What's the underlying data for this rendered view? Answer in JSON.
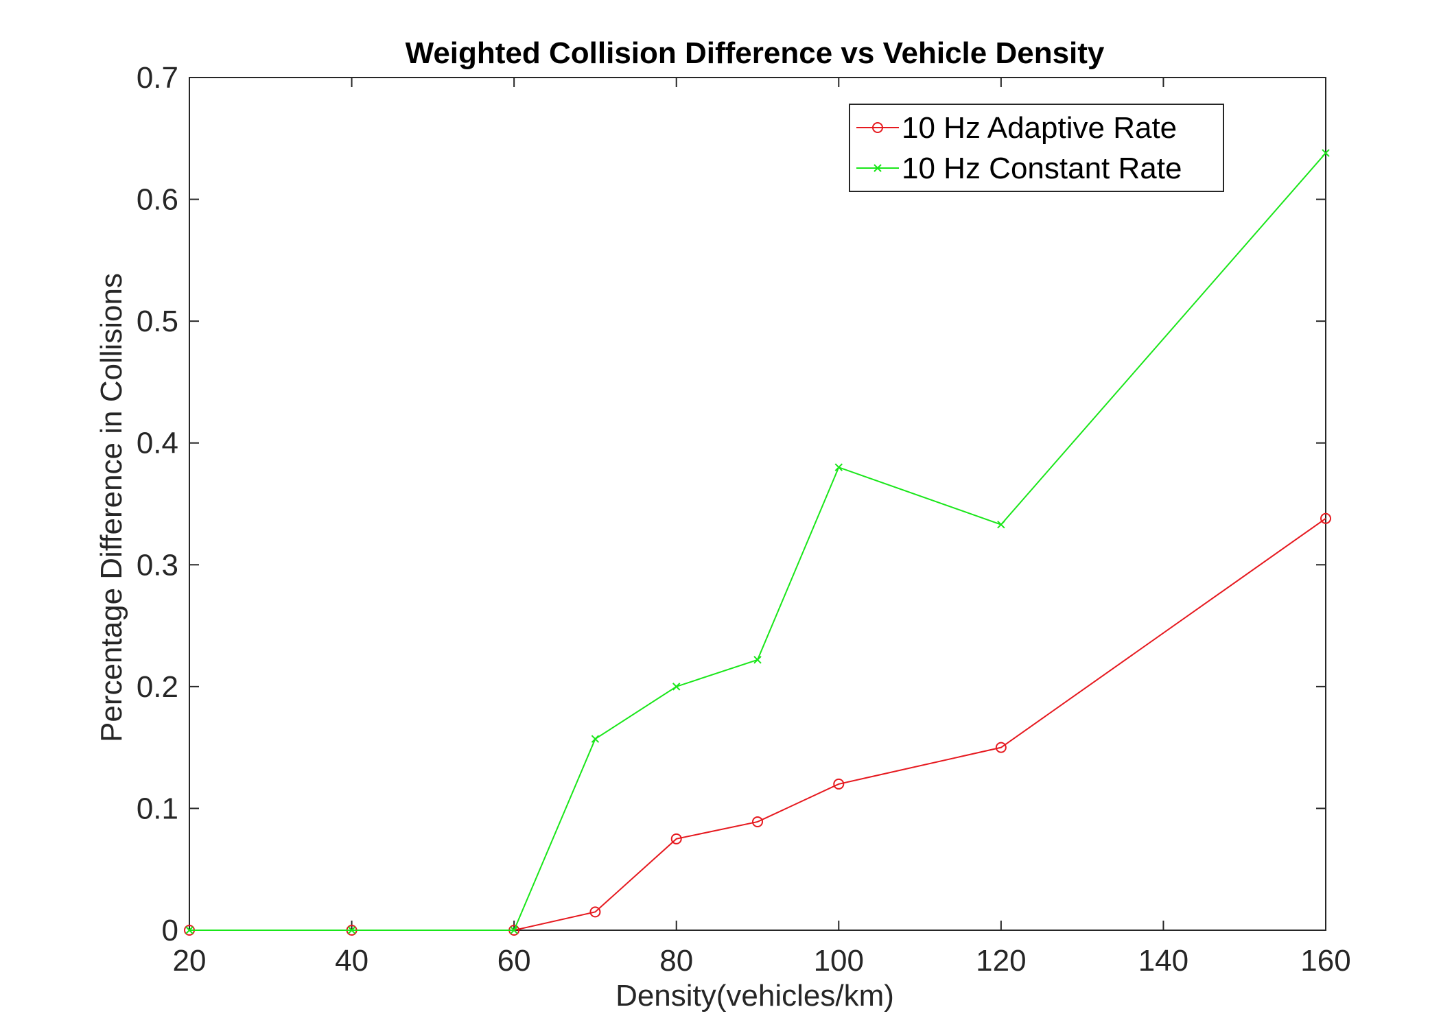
{
  "chart_data": {
    "type": "line",
    "title": "Weighted Collision Difference vs Vehicle Density",
    "xlabel": "Density(vehicles/km)",
    "ylabel": "Percentage Difference in Collisions",
    "xlim": [
      20,
      160
    ],
    "ylim": [
      0,
      0.7
    ],
    "xticks": [
      20,
      40,
      60,
      80,
      100,
      120,
      140,
      160
    ],
    "yticks": [
      0,
      0.1,
      0.2,
      0.3,
      0.4,
      0.5,
      0.6,
      0.7
    ],
    "xtick_labels": [
      "20",
      "40",
      "60",
      "80",
      "100",
      "120",
      "140",
      "160"
    ],
    "ytick_labels": [
      "0",
      "0.1",
      "0.2",
      "0.3",
      "0.4",
      "0.5",
      "0.6",
      "0.7"
    ],
    "grid": false,
    "legend_position": "top-right",
    "series": [
      {
        "name": "10 Hz Adaptive Rate",
        "color": "#e6191f",
        "marker": "circle",
        "x": [
          20,
          40,
          60,
          70,
          80,
          90,
          100,
          120,
          160
        ],
        "y": [
          0,
          0,
          0,
          0.015,
          0.075,
          0.089,
          0.12,
          0.15,
          0.338
        ]
      },
      {
        "name": "10 Hz Constant Rate",
        "color": "#19e619",
        "marker": "x",
        "x": [
          20,
          40,
          60,
          70,
          80,
          90,
          100,
          120,
          160
        ],
        "y": [
          0,
          0,
          0,
          0.157,
          0.2,
          0.222,
          0.38,
          0.333,
          0.638
        ]
      }
    ]
  }
}
